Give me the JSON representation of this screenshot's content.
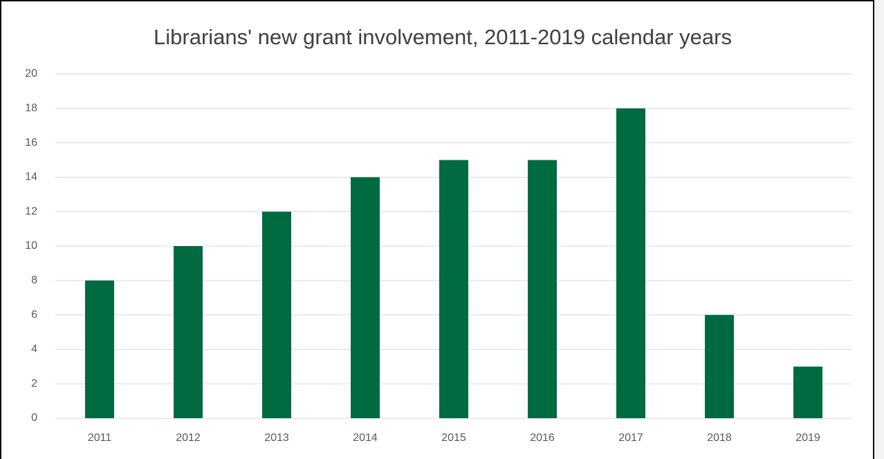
{
  "chart_data": {
    "type": "bar",
    "title": "Librarians' new grant involvement, 2011-2019 calendar years",
    "categories": [
      "2011",
      "2012",
      "2013",
      "2014",
      "2015",
      "2016",
      "2017",
      "2018",
      "2019"
    ],
    "values": [
      8,
      10,
      12,
      14,
      15,
      15,
      18,
      6,
      3
    ],
    "color": "#006a41",
    "ylim": [
      0,
      20
    ],
    "yticks": [
      0,
      2,
      4,
      6,
      8,
      10,
      12,
      14,
      16,
      18,
      20
    ],
    "grid": true
  }
}
